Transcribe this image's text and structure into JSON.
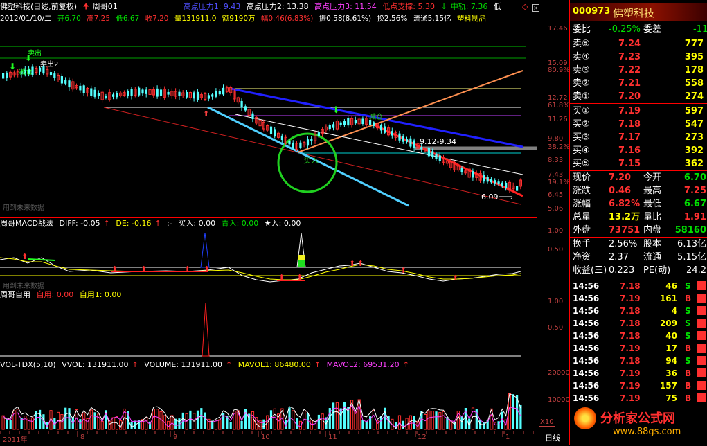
{
  "colors": {
    "up": "#ff3030",
    "down": "#54ffff",
    "bg": "#000000",
    "frame": "#ff0000"
  },
  "header": {
    "name": "佛塑科技(日线,前复权)",
    "formula": "周哥01",
    "p1_label": "高点压力1: 9.43",
    "p2_label": "高点压力2: 13.38",
    "p3_label": "高点压力3: 11.54",
    "support_label": "低点支撑: 5.30",
    "mid_label": "中轨: 7.36",
    "low_label": "低",
    "date": "2012/01/10/二",
    "open": "开6.70",
    "high": "高7.25",
    "low": "低6.67",
    "close": "收7.20",
    "volume": "量131911.0",
    "amount": "额9190万",
    "change": "幅0.46(6.83%)",
    "amplitude": "振0.58(8.61%)",
    "turnover": "换2.56%",
    "float": "流通5.15亿",
    "industry": "塑料制品"
  },
  "main_axis": [
    "17.46",
    "15.09",
    "80.9%",
    "12.72",
    "61.8%",
    "11.26",
    "9.80",
    "38.2%",
    "8.33",
    "7.43",
    "19.1%",
    "6.45",
    "5.06"
  ],
  "annotations": {
    "range_label": "9.12-9.34",
    "low_mark": "6.09",
    "buy_text": "买入",
    "note_text": "减仓",
    "topleft1": "卖出",
    "topleft2": "减仓",
    "topleft3": "卖出2",
    "future_data": "用到未来数据"
  },
  "macd": {
    "title": "周哥MACD战法",
    "diff": "DIFF: -0.05",
    "de": "DE: -0.16",
    "sep": ":-",
    "buy": "买入: 0.00",
    "buy2": "青入: 0.00",
    "star": "★入: 0.00",
    "axis": [
      "1.00",
      "0.50"
    ],
    "future_data": "用到未来数据"
  },
  "ziyong": {
    "title": "周哥自用",
    "v1": "自用: 0.00",
    "v2": "自用1: 0.00",
    "axis": [
      "1.00",
      "0.50"
    ]
  },
  "vol": {
    "title": "VOL-TDX(5,10)",
    "vvol": "VVOL: 131911.00",
    "volume": "VOLUME: 131911.00",
    "mavol1": "MAVOL1: 86480.00",
    "mavol2": "MAVOL2: 69531.20",
    "axis": [
      "20000",
      "10000"
    ],
    "unit": "X10"
  },
  "xaxis": {
    "year": "2011年",
    "months": [
      "8",
      "9",
      "10",
      "11",
      "12",
      "1"
    ],
    "period": "日线"
  },
  "quote": {
    "code": "000973",
    "name": "佛塑科技",
    "weibi_label": "委比",
    "weibi": "-0.25%",
    "weicha_label": "委差",
    "weicha": "-11",
    "asks": [
      {
        "label": "卖⑤",
        "price": "7.24",
        "vol": "777"
      },
      {
        "label": "卖④",
        "price": "7.23",
        "vol": "395"
      },
      {
        "label": "卖③",
        "price": "7.22",
        "vol": "178"
      },
      {
        "label": "卖②",
        "price": "7.21",
        "vol": "558"
      },
      {
        "label": "卖①",
        "price": "7.20",
        "vol": "274"
      }
    ],
    "bids": [
      {
        "label": "买①",
        "price": "7.19",
        "vol": "597"
      },
      {
        "label": "买②",
        "price": "7.18",
        "vol": "547"
      },
      {
        "label": "买③",
        "price": "7.17",
        "vol": "273"
      },
      {
        "label": "买④",
        "price": "7.16",
        "vol": "392"
      },
      {
        "label": "买⑤",
        "price": "7.15",
        "vol": "362"
      }
    ],
    "stats": [
      {
        "l1": "现价",
        "v1": "7.20",
        "c1": "#ff3030",
        "l2": "今开",
        "v2": "6.70",
        "c2": "#00e000"
      },
      {
        "l1": "涨跌",
        "v1": "0.46",
        "c1": "#ff3030",
        "l2": "最高",
        "v2": "7.25",
        "c2": "#ff3030"
      },
      {
        "l1": "涨幅",
        "v1": "6.82%",
        "c1": "#ff3030",
        "l2": "最低",
        "v2": "6.67",
        "c2": "#00e000"
      },
      {
        "l1": "总量",
        "v1": "13.2万",
        "c1": "#ffff00",
        "l2": "量比",
        "v2": "1.91",
        "c2": "#ff3030"
      },
      {
        "l1": "外盘",
        "v1": "73751",
        "c1": "#ff3030",
        "l2": "内盘",
        "v2": "58160",
        "c2": "#00e000"
      }
    ],
    "stats2": [
      {
        "l1": "换手",
        "v1": "2.56%",
        "l2": "股本",
        "v2": "6.13亿"
      },
      {
        "l1": "净资",
        "v1": "2.37",
        "l2": "流通",
        "v2": "5.15亿"
      },
      {
        "l1": "收益(三)",
        "v1": "0.223",
        "l2": "PE(动)",
        "v2": "24.2"
      }
    ],
    "ticks": [
      {
        "time": "14:56",
        "price": "7.18",
        "vol": "46",
        "bs": "S"
      },
      {
        "time": "14:56",
        "price": "7.19",
        "vol": "161",
        "bs": "B"
      },
      {
        "time": "14:56",
        "price": "7.18",
        "vol": "4",
        "bs": "S"
      },
      {
        "time": "14:56",
        "price": "7.18",
        "vol": "209",
        "bs": "S"
      },
      {
        "time": "14:56",
        "price": "7.18",
        "vol": "40",
        "bs": "S"
      },
      {
        "time": "14:56",
        "price": "7.19",
        "vol": "17",
        "bs": "B"
      },
      {
        "time": "14:56",
        "price": "7.18",
        "vol": "94",
        "bs": "S"
      },
      {
        "time": "14:56",
        "price": "7.19",
        "vol": "36",
        "bs": "B"
      },
      {
        "time": "14:56",
        "price": "7.19",
        "vol": "157",
        "bs": "B"
      },
      {
        "time": "14:56",
        "price": "7.19",
        "vol": "75",
        "bs": "B"
      }
    ],
    "site_name": "分析家公式网",
    "site_url": "www.88gs.com"
  }
}
